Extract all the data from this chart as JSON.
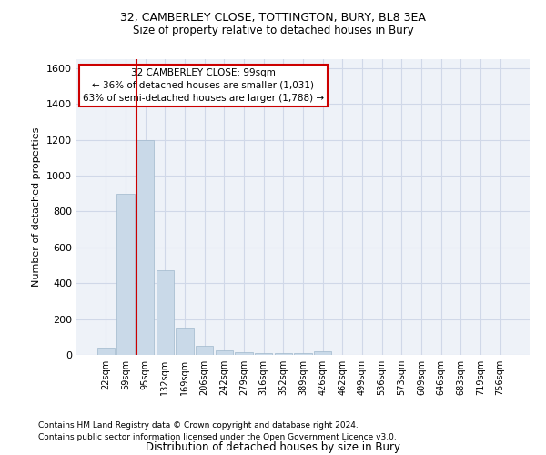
{
  "title1": "32, CAMBERLEY CLOSE, TOTTINGTON, BURY, BL8 3EA",
  "title2": "Size of property relative to detached houses in Bury",
  "xlabel": "Distribution of detached houses by size in Bury",
  "ylabel": "Number of detached properties",
  "footnote1": "Contains HM Land Registry data © Crown copyright and database right 2024.",
  "footnote2": "Contains public sector information licensed under the Open Government Licence v3.0.",
  "categories": [
    "22sqm",
    "59sqm",
    "95sqm",
    "132sqm",
    "169sqm",
    "206sqm",
    "242sqm",
    "279sqm",
    "316sqm",
    "352sqm",
    "389sqm",
    "426sqm",
    "462sqm",
    "499sqm",
    "536sqm",
    "573sqm",
    "609sqm",
    "646sqm",
    "683sqm",
    "719sqm",
    "756sqm"
  ],
  "values": [
    40,
    900,
    1200,
    470,
    150,
    50,
    25,
    15,
    10,
    10,
    8,
    20,
    0,
    0,
    0,
    0,
    0,
    0,
    0,
    0,
    0
  ],
  "bar_color": "#c9d9e8",
  "bar_edge_color": "#a0b8cc",
  "grid_color": "#d0d8e8",
  "bg_color": "#eef2f8",
  "annotation_text": "32 CAMBERLEY CLOSE: 99sqm\n← 36% of detached houses are smaller (1,031)\n63% of semi-detached houses are larger (1,788) →",
  "vline_color": "#cc0000",
  "box_color": "#ffffff",
  "box_edge_color": "#cc0000",
  "ylim": [
    0,
    1650
  ],
  "yticks": [
    0,
    200,
    400,
    600,
    800,
    1000,
    1200,
    1400,
    1600
  ]
}
